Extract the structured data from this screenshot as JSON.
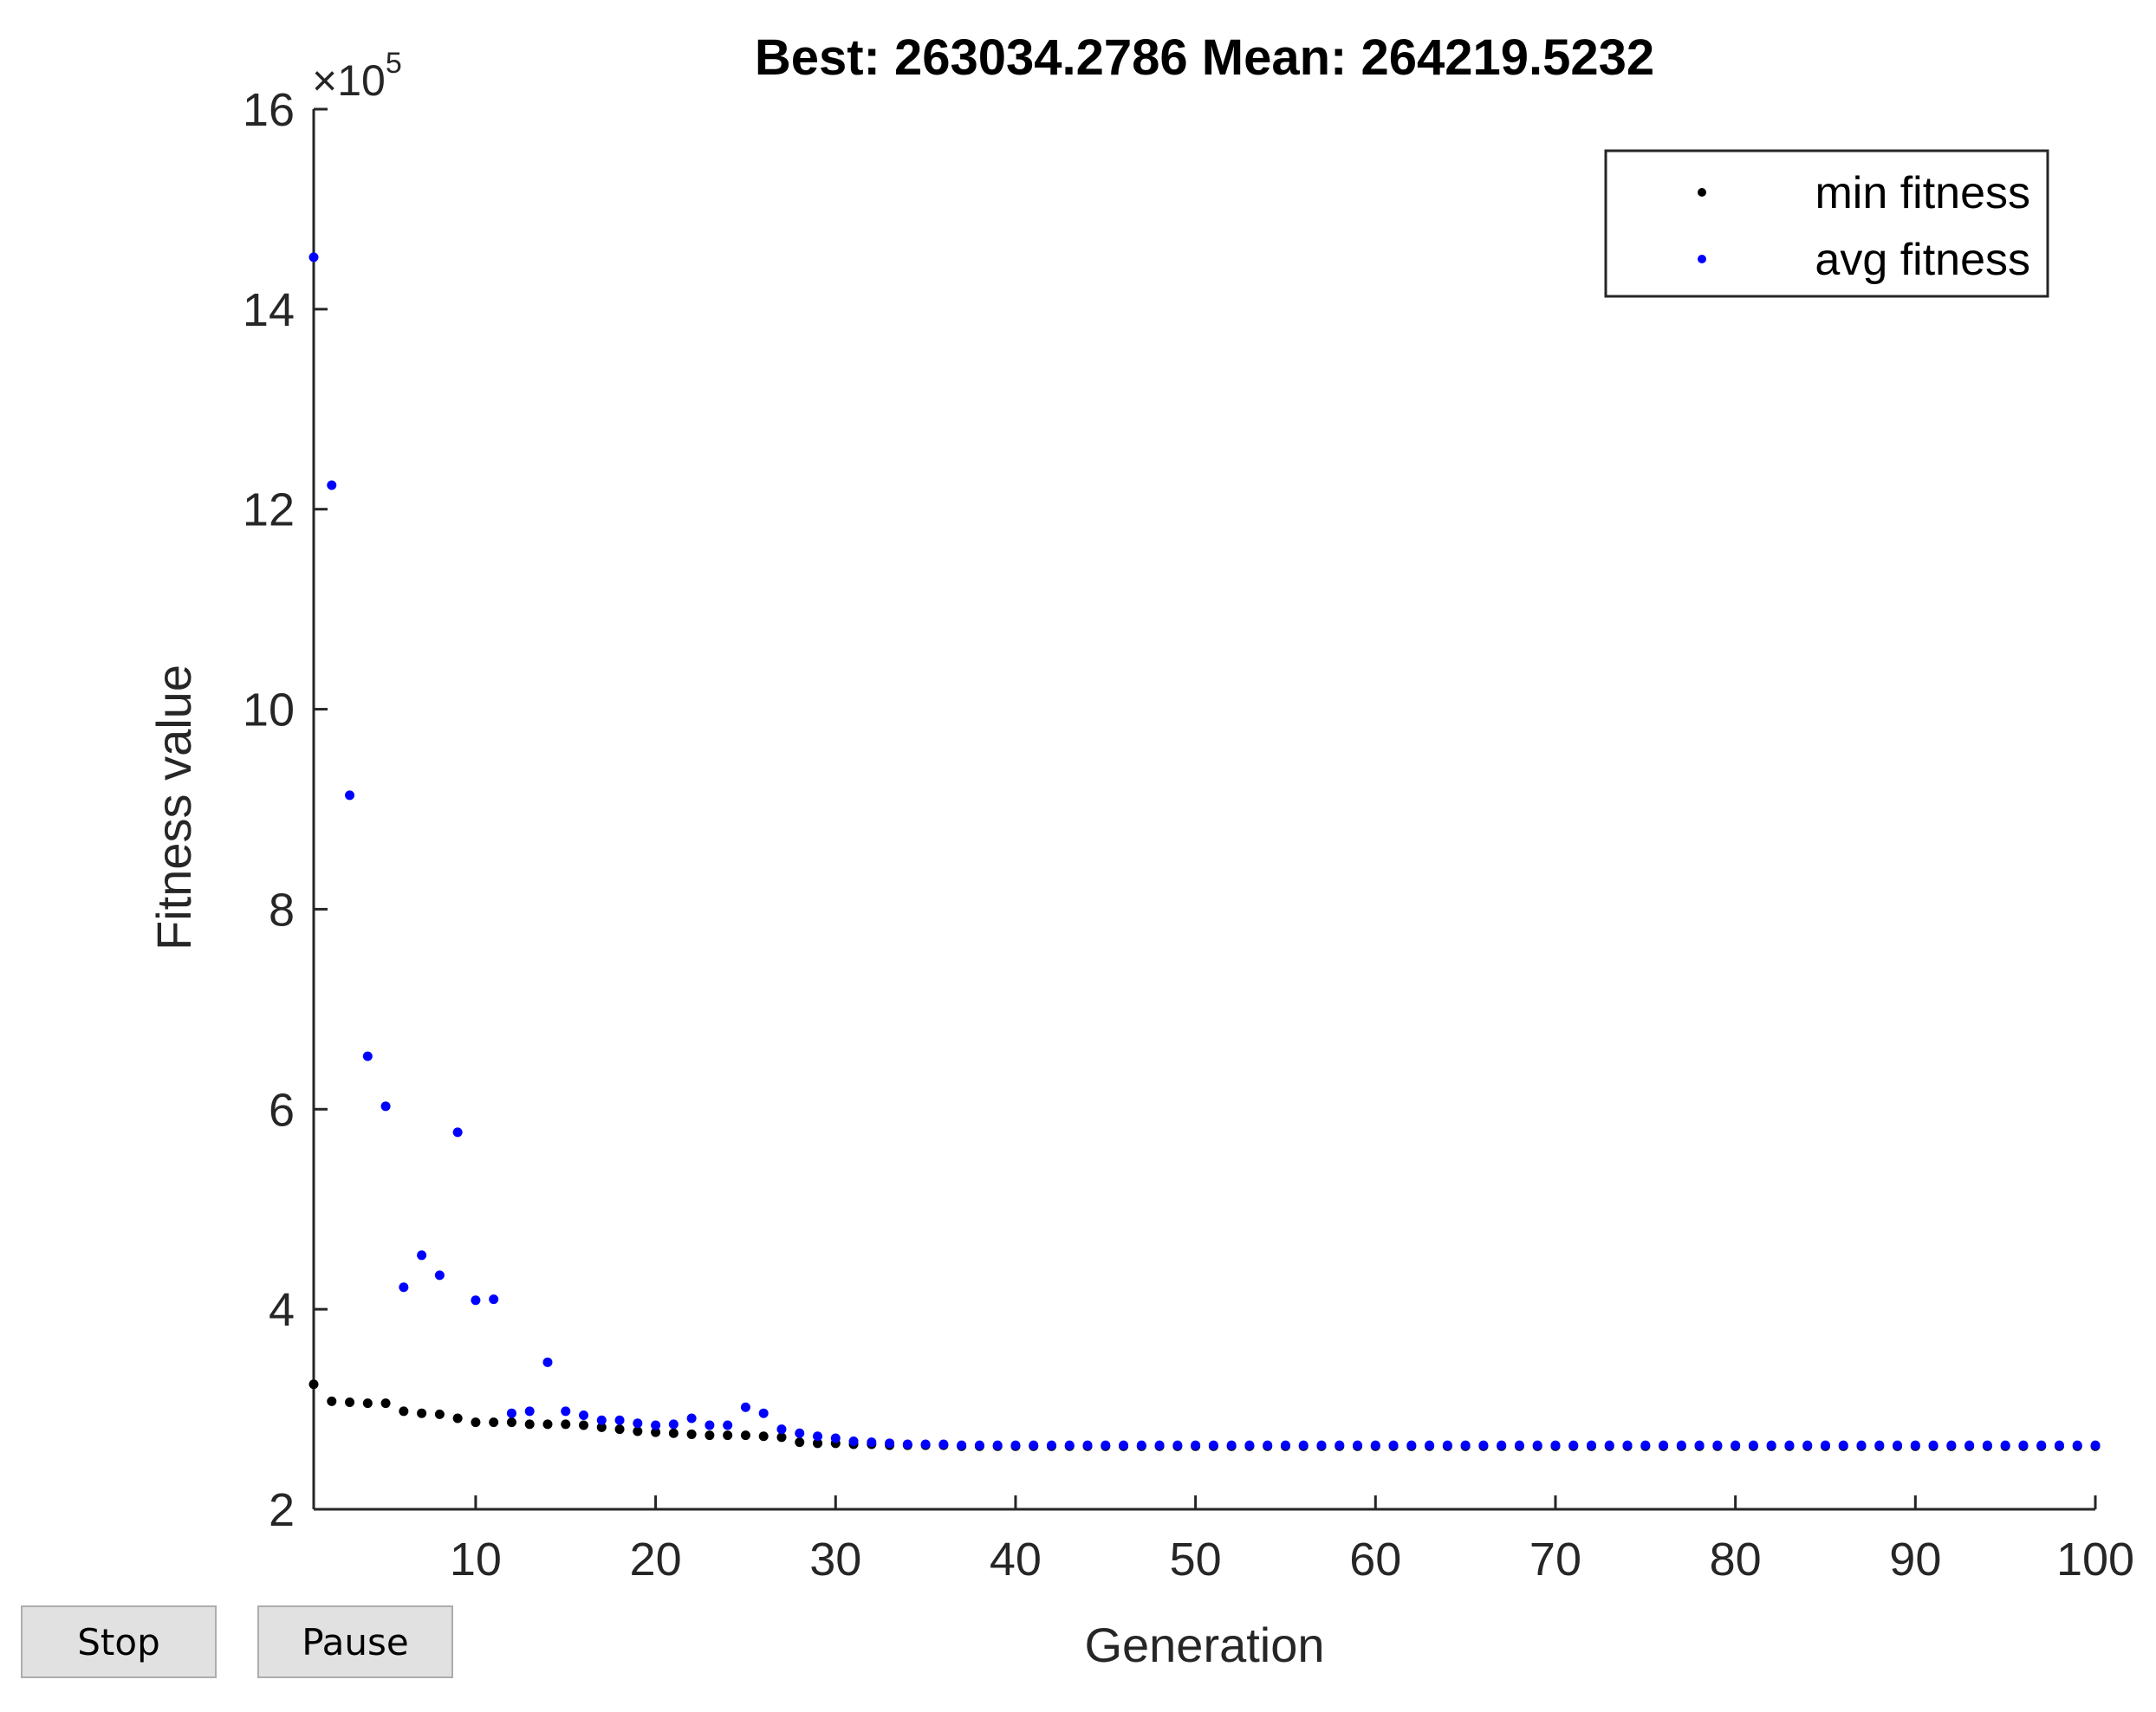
{
  "controls": {
    "stop_label": "Stop",
    "pause_label": "Pause"
  },
  "chart_data": {
    "type": "scatter",
    "title": "Best: 263034.2786 Mean: 264219.5232",
    "xlabel": "Generation",
    "ylabel": "Fitness value",
    "y_exponent_label": "×10",
    "y_exponent": "5",
    "xlim": [
      1,
      100
    ],
    "ylim": [
      2,
      16
    ],
    "xticks": [
      10,
      20,
      30,
      40,
      50,
      60,
      70,
      80,
      90,
      100
    ],
    "yticks": [
      2,
      4,
      6,
      8,
      10,
      12,
      14,
      16
    ],
    "grid": false,
    "legend_position": "top-right",
    "colors": {
      "min": "#000000",
      "avg": "#0000ff",
      "axis": "#262626"
    },
    "series": [
      {
        "name": "min fitness",
        "color": "#000000",
        "x": [
          1,
          2,
          3,
          4,
          5,
          6,
          7,
          8,
          9,
          10,
          11,
          12,
          13,
          14,
          15,
          16,
          17,
          18,
          19,
          20,
          21,
          22,
          23,
          24,
          25,
          26,
          27,
          28,
          29,
          30,
          31,
          32,
          33,
          34,
          35,
          36,
          37,
          38,
          39,
          40,
          41,
          42,
          43,
          44,
          45,
          46,
          47,
          48,
          49,
          50,
          51,
          52,
          53,
          54,
          55,
          56,
          57,
          58,
          59,
          60,
          61,
          62,
          63,
          64,
          65,
          66,
          67,
          68,
          69,
          70,
          71,
          72,
          73,
          74,
          75,
          76,
          77,
          78,
          79,
          80,
          81,
          82,
          83,
          84,
          85,
          86,
          87,
          88,
          89,
          90,
          91,
          92,
          93,
          94,
          95,
          96,
          97,
          98,
          99,
          100
        ],
        "y": [
          3.25,
          3.08,
          3.07,
          3.06,
          3.06,
          2.98,
          2.96,
          2.95,
          2.91,
          2.87,
          2.87,
          2.87,
          2.85,
          2.85,
          2.85,
          2.84,
          2.82,
          2.8,
          2.78,
          2.77,
          2.76,
          2.75,
          2.74,
          2.74,
          2.74,
          2.73,
          2.72,
          2.67,
          2.66,
          2.66,
          2.65,
          2.65,
          2.64,
          2.64,
          2.64,
          2.64,
          2.63,
          2.63,
          2.63,
          2.63,
          2.63,
          2.63,
          2.63,
          2.63,
          2.63,
          2.63,
          2.63,
          2.63,
          2.63,
          2.63,
          2.63,
          2.63,
          2.63,
          2.63,
          2.63,
          2.63,
          2.63,
          2.63,
          2.63,
          2.63,
          2.63,
          2.63,
          2.63,
          2.63,
          2.63,
          2.63,
          2.63,
          2.63,
          2.63,
          2.63,
          2.63,
          2.63,
          2.63,
          2.63,
          2.63,
          2.63,
          2.63,
          2.63,
          2.63,
          2.63,
          2.63,
          2.63,
          2.63,
          2.63,
          2.63,
          2.63,
          2.63,
          2.63,
          2.63,
          2.63,
          2.63,
          2.63,
          2.63,
          2.63,
          2.63,
          2.63,
          2.63,
          2.63,
          2.63,
          2.63
        ]
      },
      {
        "name": "avg fitness",
        "color": "#0000ff",
        "x": [
          1,
          2,
          3,
          4,
          5,
          6,
          7,
          8,
          9,
          10,
          11,
          12,
          13,
          14,
          15,
          16,
          17,
          18,
          19,
          20,
          21,
          22,
          23,
          24,
          25,
          26,
          27,
          28,
          29,
          30,
          31,
          32,
          33,
          34,
          35,
          36,
          37,
          38,
          39,
          40,
          41,
          42,
          43,
          44,
          45,
          46,
          47,
          48,
          49,
          50,
          51,
          52,
          53,
          54,
          55,
          56,
          57,
          58,
          59,
          60,
          61,
          62,
          63,
          64,
          65,
          66,
          67,
          68,
          69,
          70,
          71,
          72,
          73,
          74,
          75,
          76,
          77,
          78,
          79,
          80,
          81,
          82,
          83,
          84,
          85,
          86,
          87,
          88,
          89,
          90,
          91,
          92,
          93,
          94,
          95,
          96,
          97,
          98,
          99,
          100
        ],
        "y": [
          14.52,
          12.24,
          9.14,
          6.53,
          6.03,
          4.22,
          4.54,
          4.34,
          5.77,
          4.09,
          4.1,
          2.96,
          2.98,
          3.47,
          2.98,
          2.94,
          2.89,
          2.89,
          2.86,
          2.84,
          2.85,
          2.91,
          2.84,
          2.84,
          3.02,
          2.96,
          2.8,
          2.76,
          2.73,
          2.71,
          2.68,
          2.67,
          2.66,
          2.65,
          2.65,
          2.65,
          2.64,
          2.64,
          2.64,
          2.64,
          2.64,
          2.64,
          2.64,
          2.64,
          2.64,
          2.64,
          2.64,
          2.64,
          2.64,
          2.64,
          2.64,
          2.64,
          2.64,
          2.64,
          2.64,
          2.64,
          2.64,
          2.64,
          2.64,
          2.64,
          2.64,
          2.64,
          2.64,
          2.64,
          2.64,
          2.64,
          2.64,
          2.64,
          2.64,
          2.64,
          2.64,
          2.64,
          2.64,
          2.64,
          2.64,
          2.64,
          2.64,
          2.64,
          2.64,
          2.64,
          2.64,
          2.64,
          2.64,
          2.64,
          2.64,
          2.64,
          2.64,
          2.64,
          2.64,
          2.64,
          2.64,
          2.64,
          2.64,
          2.64,
          2.64,
          2.64,
          2.64,
          2.64,
          2.64,
          2.64
        ]
      }
    ]
  }
}
